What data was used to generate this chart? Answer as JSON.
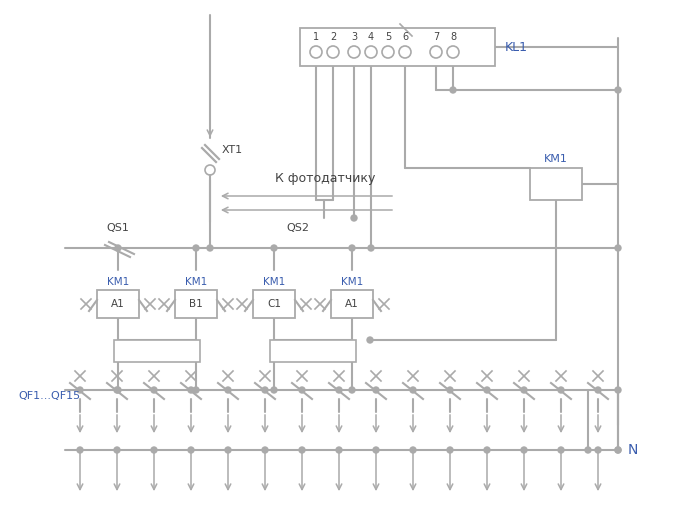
{
  "bg_color": "#ffffff",
  "line_color": "#aaaaaa",
  "text_color_black": "#444444",
  "text_color_blue": "#3a5dae",
  "lw": 1.5,
  "fig_width": 6.8,
  "fig_height": 5.2,
  "dpi": 100,
  "labels": {
    "KL1": "KL1",
    "KM1": "KM1",
    "XT1": "XT1",
    "QS1": "QS1",
    "QS2": "QS2",
    "K_foto": "К фотодатчику",
    "QF_label": "QF1...QF15",
    "N": "N"
  },
  "cont_subs": [
    "A1",
    "B1",
    "C1",
    "A1"
  ],
  "term_labels": [
    "1",
    "2",
    "3",
    "4",
    "5",
    "6",
    "7",
    "8"
  ]
}
